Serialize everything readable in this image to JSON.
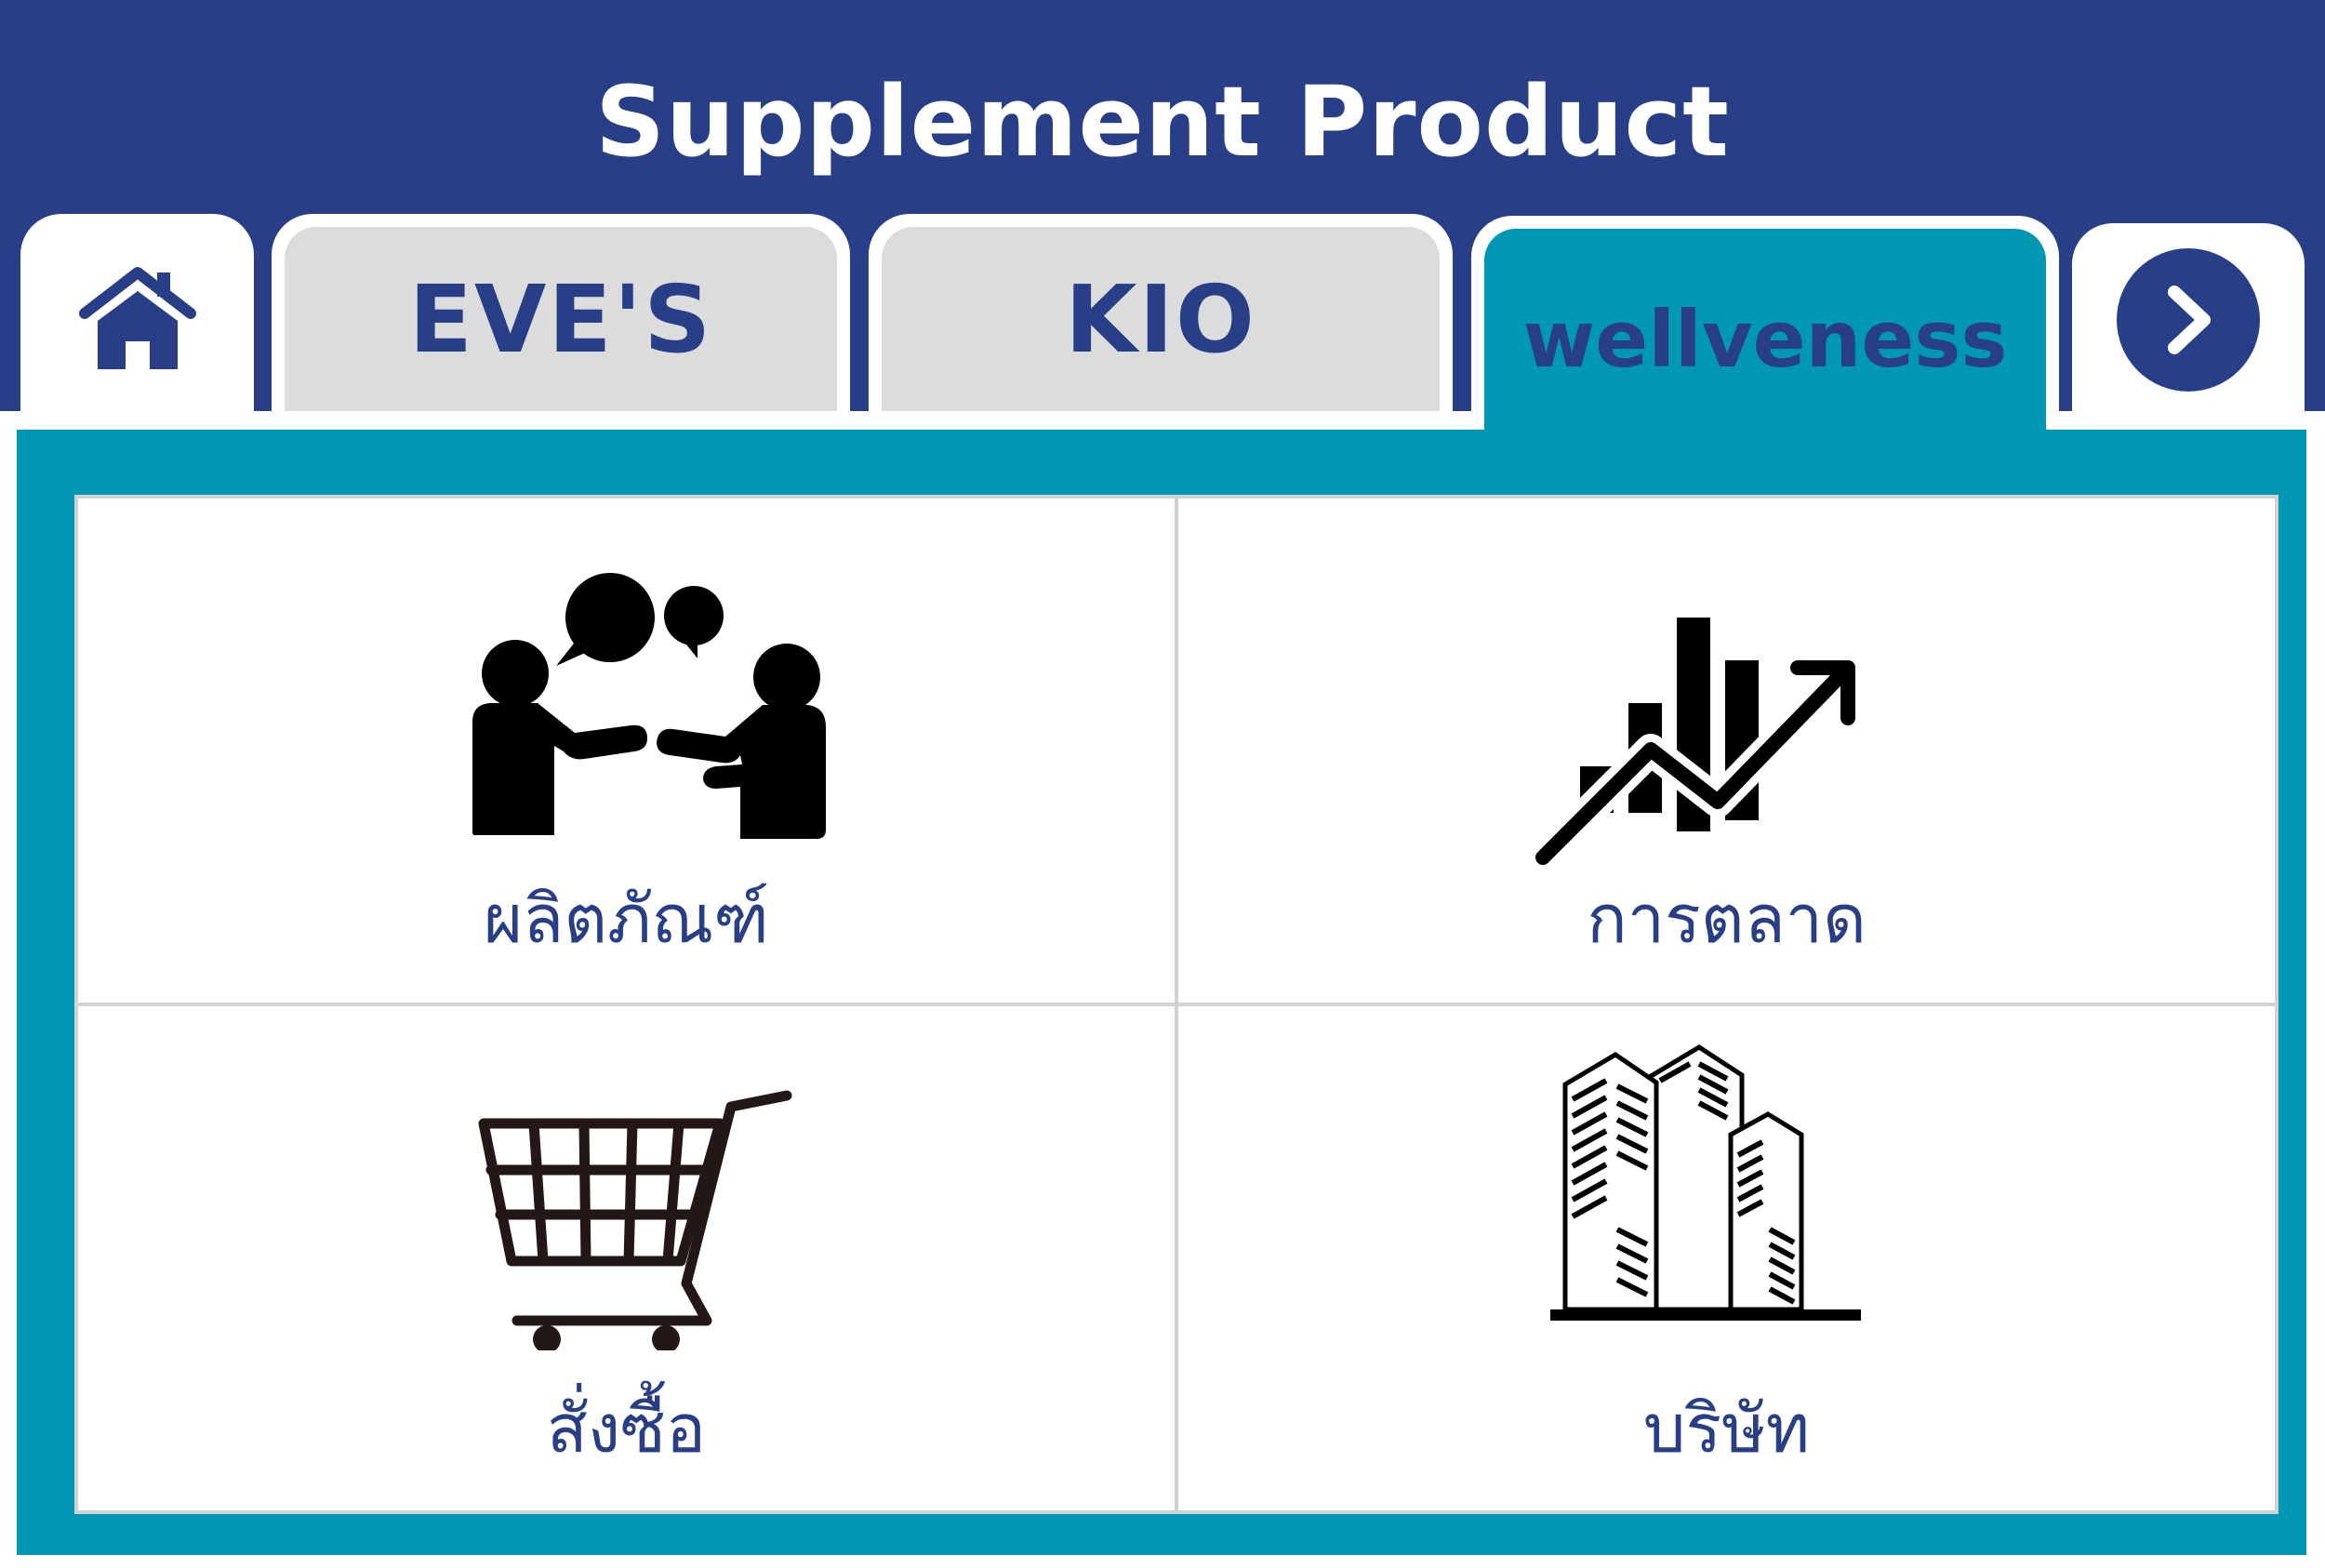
{
  "app": {
    "title": "Supplement Product"
  },
  "tabs": [
    {
      "id": "home",
      "icon": "home-icon"
    },
    {
      "id": "eves",
      "label": "EVE'S"
    },
    {
      "id": "kio",
      "label": "KIO"
    },
    {
      "id": "wellveness",
      "label": "wellveness",
      "active": true
    },
    {
      "id": "next",
      "icon": "chevron-right-icon"
    }
  ],
  "menu": {
    "items": [
      {
        "label": "ผลิตภัณฑ์",
        "icon": "people-talking-icon"
      },
      {
        "label": "การตลาด",
        "icon": "growth-chart-icon"
      },
      {
        "label": "สั่งซื้อ",
        "icon": "shopping-cart-icon"
      },
      {
        "label": "บริษัท",
        "icon": "buildings-icon"
      }
    ]
  },
  "colors": {
    "header": "#283f88",
    "accent": "#0097b2",
    "tab_inactive": "#dcdcdc",
    "text": "#283f88"
  }
}
